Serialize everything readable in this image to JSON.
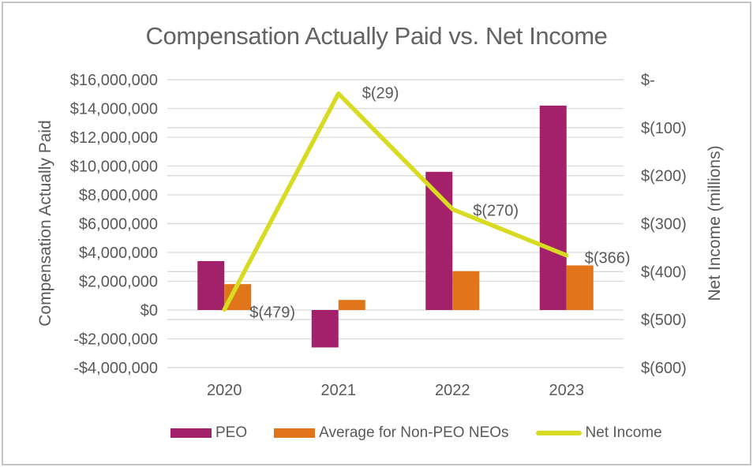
{
  "title": "Compensation Actually Paid vs. Net Income",
  "chart_data": {
    "type": "combo-bar-line",
    "categories": [
      "2020",
      "2021",
      "2022",
      "2023"
    ],
    "series": [
      {
        "name": "PEO",
        "type": "bar",
        "axis": "left",
        "color": "#A3216B",
        "values": [
          3400000,
          -2600000,
          9600000,
          14200000
        ]
      },
      {
        "name": "Average for Non-PEO NEOs",
        "type": "bar",
        "axis": "left",
        "color": "#E1751A",
        "values": [
          1800000,
          700000,
          2700000,
          3100000
        ]
      },
      {
        "name": "Net Income",
        "type": "line",
        "axis": "right",
        "color": "#D7DB21",
        "values": [
          -479,
          -29,
          -270,
          -366
        ],
        "labels": [
          "$(479)",
          "$(29)",
          "$(270)",
          "$(366)"
        ]
      }
    ],
    "left_axis": {
      "title": "Compensation Actually Paid",
      "min": -4000000,
      "max": 16000000,
      "step": 2000000,
      "tick_values": [
        16000000,
        14000000,
        12000000,
        10000000,
        8000000,
        6000000,
        4000000,
        2000000,
        0,
        -2000000,
        -4000000
      ],
      "tick_labels": [
        "$16,000,000",
        "$14,000,000",
        "$12,000,000",
        "$10,000,000",
        "$8,000,000",
        "$6,000,000",
        "$4,000,000",
        "$2,000,000",
        "$0",
        "-$2,000,000",
        "-$4,000,000"
      ]
    },
    "right_axis": {
      "title": "Net Income (millions)",
      "min": -600,
      "max": 0,
      "step": -100,
      "tick_values": [
        0,
        -100,
        -200,
        -300,
        -400,
        -500,
        -600
      ],
      "tick_labels": [
        "$-",
        "$(100)",
        "$(200)",
        "$(300)",
        "$(400)",
        "$(500)",
        "$(600)"
      ]
    },
    "legend": {
      "position": "bottom",
      "entries": [
        "PEO",
        "Average for Non-PEO NEOs",
        "Net Income"
      ]
    },
    "grid": true,
    "colors": {
      "text": "#595959",
      "gridline": "#D9D9D9",
      "background": "#FFFFFF",
      "border": "#BFBFBF"
    }
  }
}
